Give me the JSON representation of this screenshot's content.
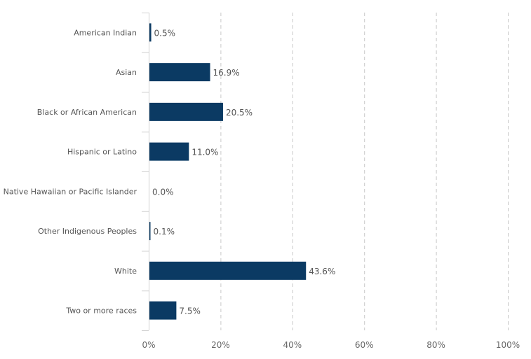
{
  "chart_data": {
    "type": "bar",
    "orientation": "horizontal",
    "categories": [
      "American Indian",
      "Asian",
      "Black or African American",
      "Hispanic or Latino",
      "Native Hawaiian or Pacific Islander",
      "Other Indigenous Peoples",
      "White",
      "Two or more races"
    ],
    "values": [
      0.5,
      16.9,
      20.5,
      11.0,
      0.0,
      0.1,
      43.6,
      7.5
    ],
    "value_labels": [
      "0.5%",
      "16.9%",
      "20.5%",
      "11.0%",
      "0.0%",
      "0.1%",
      "43.6%",
      "7.5%"
    ],
    "xlim": [
      0,
      100
    ],
    "x_ticks": [
      0,
      20,
      40,
      60,
      80,
      100
    ],
    "x_tick_labels": [
      "0%",
      "20%",
      "40%",
      "60%",
      "80%",
      "100%"
    ],
    "title": "",
    "xlabel": "",
    "ylabel": "",
    "grid": "vertical dashed",
    "legend": "none",
    "colors": {
      "bar": "#0b3a63",
      "grid": "#c8c8c8",
      "axis": "#d0d0d0",
      "text": "#555555"
    }
  }
}
